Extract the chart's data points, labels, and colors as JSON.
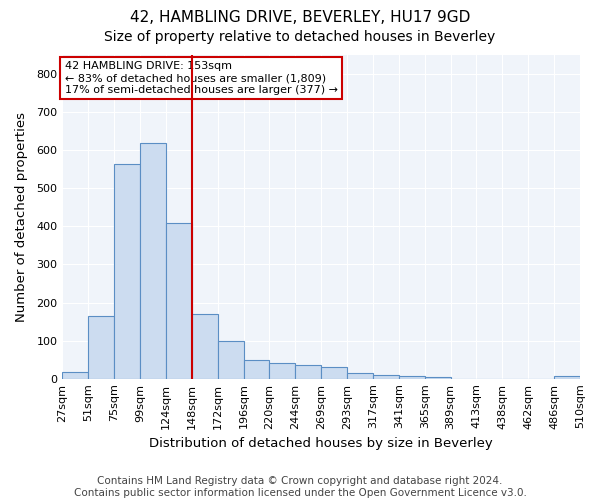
{
  "title": "42, HAMBLING DRIVE, BEVERLEY, HU17 9GD",
  "subtitle": "Size of property relative to detached houses in Beverley",
  "xlabel": "Distribution of detached houses by size in Beverley",
  "ylabel": "Number of detached properties",
  "footer_line1": "Contains HM Land Registry data © Crown copyright and database right 2024.",
  "footer_line2": "Contains public sector information licensed under the Open Government Licence v3.0.",
  "bins": [
    "27sqm",
    "51sqm",
    "75sqm",
    "99sqm",
    "124sqm",
    "148sqm",
    "172sqm",
    "196sqm",
    "220sqm",
    "244sqm",
    "269sqm",
    "293sqm",
    "317sqm",
    "341sqm",
    "365sqm",
    "389sqm",
    "413sqm",
    "438sqm",
    "462sqm",
    "486sqm",
    "510sqm"
  ],
  "values": [
    18,
    165,
    565,
    620,
    410,
    170,
    100,
    50,
    42,
    35,
    30,
    14,
    10,
    6,
    5,
    0,
    0,
    0,
    0,
    8
  ],
  "bar_color": "#ccdcf0",
  "bar_edge_color": "#5b8ec4",
  "red_line_x": 5.0,
  "annotation_line1": "42 HAMBLING DRIVE: 153sqm",
  "annotation_line2": "← 83% of detached houses are smaller (1,809)",
  "annotation_line3": "17% of semi-detached houses are larger (377) →",
  "annotation_box_color": "white",
  "annotation_box_edge": "#cc0000",
  "ylim": [
    0,
    850
  ],
  "yticks": [
    0,
    100,
    200,
    300,
    400,
    500,
    600,
    700,
    800
  ],
  "bg_color": "#ffffff",
  "plot_bg_color": "#f0f4fa",
  "grid_color": "white",
  "title_fontsize": 11,
  "subtitle_fontsize": 10,
  "axis_label_fontsize": 9.5,
  "tick_fontsize": 8,
  "footer_fontsize": 7.5
}
